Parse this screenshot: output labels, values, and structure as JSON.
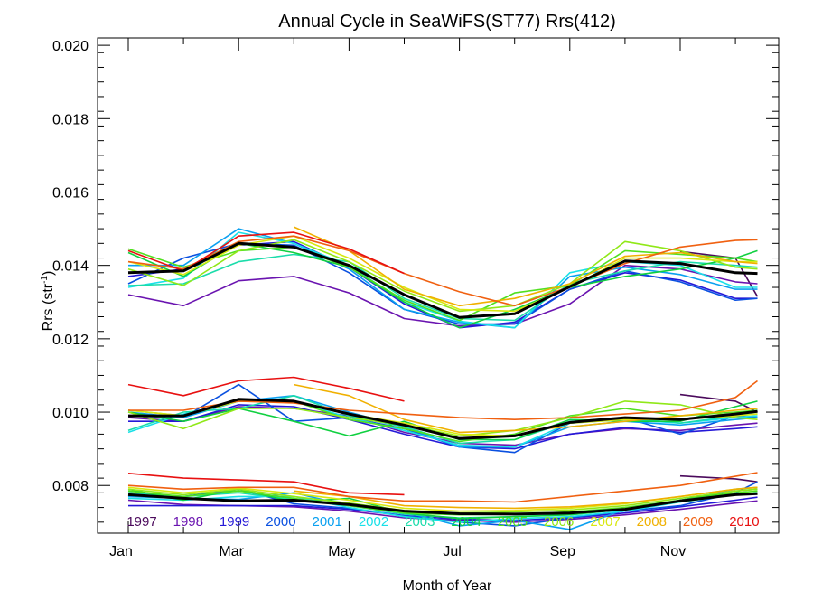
{
  "chart_data": {
    "type": "line",
    "title": "Annual Cycle in SeaWiFS(ST77) Rrs(412)",
    "xlabel": "Month of Year",
    "ylabel": "Rrs (str",
    "ylabel_sup": "-1",
    "ylabel_close": ")",
    "xlim": [
      0,
      11.4
    ],
    "ylim": [
      0.0067,
      0.0202
    ],
    "xticks": [
      {
        "x": 0,
        "label": "Jan"
      },
      {
        "x": 2,
        "label": "Mar"
      },
      {
        "x": 4,
        "label": "May"
      },
      {
        "x": 6,
        "label": "Jul"
      },
      {
        "x": 8,
        "label": "Sep"
      },
      {
        "x": 10,
        "label": "Nov"
      }
    ],
    "yticks": [
      {
        "y": 0.008,
        "label": "0.008"
      },
      {
        "y": 0.01,
        "label": "0.010"
      },
      {
        "y": 0.012,
        "label": "0.012"
      },
      {
        "y": 0.014,
        "label": "0.014"
      },
      {
        "y": 0.016,
        "label": "0.016"
      },
      {
        "y": 0.018,
        "label": "0.018"
      },
      {
        "y": 0.02,
        "label": "0.020"
      }
    ],
    "x": [
      0,
      1,
      2,
      3,
      4,
      5,
      6,
      7,
      8,
      9,
      10,
      11,
      11.4
    ],
    "series": [
      {
        "name": "1997",
        "color": "#4b0a5c",
        "groups": [
          [
            null,
            null,
            null,
            null,
            null,
            null,
            null,
            null,
            null,
            null,
            0.01438,
            0.0142,
            0.01315
          ],
          [
            null,
            null,
            null,
            null,
            null,
            null,
            null,
            null,
            null,
            null,
            0.01048,
            0.0103,
            0.01
          ],
          [
            null,
            null,
            null,
            null,
            null,
            null,
            null,
            null,
            null,
            null,
            0.00826,
            0.00818,
            0.0081
          ]
        ]
      },
      {
        "name": "1998",
        "color": "#6a14b0",
        "groups": [
          [
            0.0132,
            0.0129,
            0.01358,
            0.0137,
            0.01325,
            0.01255,
            0.01235,
            0.0124,
            0.01295,
            0.014,
            0.0139,
            0.01355,
            0.0135
          ],
          [
            0.00985,
            0.00975,
            0.01015,
            0.0101,
            0.0099,
            0.00945,
            0.00915,
            0.0091,
            0.0094,
            0.00955,
            0.0095,
            0.00965,
            0.0097
          ],
          [
            0.0076,
            0.00748,
            0.00745,
            0.00742,
            0.0073,
            0.00712,
            0.00705,
            0.007,
            0.00708,
            0.0072,
            0.00735,
            0.00752,
            0.00758
          ]
        ]
      },
      {
        "name": "1999",
        "color": "#2418d8",
        "groups": [
          [
            0.0137,
            0.0139,
            0.01455,
            0.01465,
            0.01395,
            0.01295,
            0.0123,
            0.01245,
            0.01335,
            0.0138,
            0.0136,
            0.0131,
            0.0131
          ],
          [
            0.00975,
            0.00975,
            0.0102,
            0.01015,
            0.0098,
            0.0094,
            0.00905,
            0.009,
            0.0094,
            0.00958,
            0.00945,
            0.00955,
            0.0096
          ],
          [
            0.00745,
            0.00745,
            0.00745,
            0.00745,
            0.00735,
            0.00718,
            0.00708,
            0.00705,
            0.00712,
            0.00725,
            0.00742,
            0.0076,
            0.00768
          ]
        ]
      },
      {
        "name": "2000",
        "color": "#0a50e0",
        "groups": [
          [
            0.0135,
            0.0142,
            0.0146,
            0.01455,
            0.0138,
            0.0128,
            0.0124,
            0.0124,
            0.01335,
            0.01385,
            0.01355,
            0.01305,
            0.0131
          ],
          [
            0.0099,
            0.00985,
            0.01075,
            0.00975,
            0.00985,
            0.00955,
            0.00905,
            0.0089,
            0.0097,
            0.00985,
            0.0094,
            0.0099,
            0.00985
          ],
          [
            0.0078,
            0.0077,
            0.0079,
            0.0075,
            0.00738,
            0.00718,
            0.007,
            0.0069,
            0.00712,
            0.0073,
            0.00745,
            0.0078,
            0.0081
          ]
        ]
      },
      {
        "name": "2001",
        "color": "#0aa0f0",
        "groups": [
          [
            0.014,
            0.014,
            0.015,
            0.0146,
            0.0139,
            0.0128,
            0.01245,
            0.0123,
            0.0137,
            0.01395,
            0.01375,
            0.01335,
            0.01335
          ],
          [
            0.01,
            0.00985,
            0.0103,
            0.01045,
            0.01,
            0.0096,
            0.00905,
            0.00905,
            0.0096,
            0.00975,
            0.00965,
            0.0098,
            0.00985
          ],
          [
            0.0077,
            0.00765,
            0.00762,
            0.0078,
            0.00745,
            0.00728,
            0.0069,
            0.00705,
            0.0068,
            0.00735,
            0.0076,
            0.0079,
            0.00795
          ]
        ]
      },
      {
        "name": "2002",
        "color": "#18e0e8",
        "groups": [
          [
            0.0134,
            0.01365,
            0.0149,
            0.0146,
            0.014,
            0.013,
            0.01248,
            0.0123,
            0.0138,
            0.0141,
            0.014,
            0.0134,
            0.0134
          ],
          [
            0.00945,
            0.00995,
            0.0103,
            0.0103,
            0.00985,
            0.0095,
            0.0091,
            0.00905,
            0.0097,
            0.0098,
            0.0097,
            0.00985,
            0.0099
          ],
          [
            0.00765,
            0.0076,
            0.0077,
            0.0077,
            0.0074,
            0.00715,
            0.007,
            0.0071,
            0.00715,
            0.0073,
            0.00755,
            0.00775,
            0.0078
          ]
        ]
      },
      {
        "name": "2003",
        "color": "#1adcaa",
        "groups": [
          [
            0.01345,
            0.0135,
            0.0141,
            0.0143,
            0.0141,
            0.0131,
            0.01255,
            0.0125,
            0.0135,
            0.01385,
            0.0141,
            0.014,
            0.01395
          ],
          [
            0.0095,
            0.01,
            0.0101,
            0.01045,
            0.0099,
            0.0096,
            0.00915,
            0.00925,
            0.00975,
            0.00985,
            0.0097,
            0.0099,
            0.00995
          ],
          [
            0.0078,
            0.0077,
            0.0078,
            0.00762,
            0.00745,
            0.00722,
            0.00712,
            0.00715,
            0.0072,
            0.00735,
            0.00755,
            0.00775,
            0.0078
          ]
        ]
      },
      {
        "name": "2004",
        "color": "#10d040",
        "groups": [
          [
            0.01435,
            0.0137,
            0.0146,
            0.01435,
            0.01395,
            0.013,
            0.0123,
            0.0128,
            0.0134,
            0.0137,
            0.0139,
            0.0142,
            0.0144
          ],
          [
            0.01,
            0.00975,
            0.0101,
            0.00975,
            0.00935,
            0.00975,
            0.00925,
            0.00925,
            0.0098,
            0.00975,
            0.00975,
            0.01015,
            0.0103
          ],
          [
            0.0079,
            0.0076,
            0.0079,
            0.00755,
            0.00765,
            0.00725,
            0.0071,
            0.00715,
            0.0072,
            0.00735,
            0.0076,
            0.00785,
            0.0079
          ]
        ]
      },
      {
        "name": "2005",
        "color": "#50e020",
        "groups": [
          [
            0.01445,
            0.01395,
            0.0144,
            0.0145,
            0.01395,
            0.01305,
            0.0125,
            0.01325,
            0.01345,
            0.0144,
            0.0143,
            0.0142,
            0.0141
          ],
          [
            0.01005,
            0.0099,
            0.0103,
            0.0103,
            0.0098,
            0.00955,
            0.0092,
            0.0094,
            0.0099,
            0.0101,
            0.0099,
            0.01,
            0.01005
          ],
          [
            0.00785,
            0.0077,
            0.00785,
            0.00765,
            0.00745,
            0.00725,
            0.0072,
            0.00722,
            0.00728,
            0.0074,
            0.0076,
            0.0078,
            0.00785
          ]
        ]
      },
      {
        "name": "2006",
        "color": "#90e818",
        "groups": [
          [
            0.0139,
            0.01345,
            0.0144,
            0.0147,
            0.0141,
            0.0133,
            0.01275,
            0.0129,
            0.0135,
            0.01465,
            0.0144,
            0.01395,
            0.0139
          ],
          [
            0.01,
            0.00955,
            0.0101,
            0.0101,
            0.00985,
            0.00965,
            0.00935,
            0.0095,
            0.00985,
            0.0103,
            0.0102,
            0.00985,
            0.0098
          ],
          [
            0.0079,
            0.00775,
            0.0079,
            0.0077,
            0.00752,
            0.00732,
            0.00725,
            0.00728,
            0.00733,
            0.00745,
            0.00765,
            0.00785,
            0.0079
          ]
        ]
      },
      {
        "name": "2007",
        "color": "#d8e810",
        "groups": [
          [
            0.0141,
            0.01375,
            0.01455,
            0.0148,
            0.0142,
            0.0134,
            0.0128,
            0.01275,
            0.0134,
            0.0142,
            0.0142,
            0.0141,
            0.0141
          ],
          [
            0.01005,
            0.0099,
            0.0103,
            0.0103,
            0.00995,
            0.0097,
            0.0094,
            0.00935,
            0.0097,
            0.0098,
            0.0098,
            0.0099,
            0.00995
          ],
          [
            0.00795,
            0.0078,
            0.00793,
            0.00778,
            0.0076,
            0.00738,
            0.0073,
            0.00732,
            0.00738,
            0.0075,
            0.0077,
            0.0079,
            0.00795
          ]
        ]
      },
      {
        "name": "2008",
        "color": "#f0b000",
        "groups": [
          [
            null,
            null,
            null,
            0.01505,
            0.0144,
            0.01335,
            0.0129,
            0.0131,
            0.0135,
            0.01425,
            0.01435,
            0.0141,
            0.01405
          ],
          [
            null,
            null,
            null,
            0.01075,
            0.01045,
            0.0098,
            0.00945,
            0.0095,
            0.0096,
            0.00975,
            0.0099,
            0.01005,
            0.0101
          ],
          [
            null,
            null,
            null,
            0.00785,
            0.0077,
            0.00745,
            0.0074,
            0.00738,
            0.00742,
            0.00752,
            0.0077,
            0.0079,
            0.00795
          ]
        ]
      },
      {
        "name": "2009",
        "color": "#f06010",
        "groups": [
          [
            0.0141,
            0.0139,
            0.01465,
            0.0148,
            0.0144,
            0.01378,
            0.01328,
            0.0129,
            0.01342,
            0.01405,
            0.0145,
            0.01468,
            0.0147
          ],
          [
            0.01005,
            0.01005,
            0.0103,
            0.01025,
            0.01005,
            0.00995,
            0.00985,
            0.0098,
            0.00985,
            0.00995,
            0.01005,
            0.0104,
            0.01085
          ],
          [
            0.008,
            0.0079,
            0.00795,
            0.00795,
            0.0077,
            0.00758,
            0.00758,
            0.00755,
            0.0077,
            0.00785,
            0.008,
            0.00825,
            0.00835
          ]
        ]
      },
      {
        "name": "2010",
        "color": "#e81010",
        "groups": [
          [
            0.0144,
            0.01385,
            0.0148,
            0.0149,
            0.01445,
            0.01378,
            null,
            null,
            null,
            null,
            null,
            null,
            null
          ],
          [
            0.01075,
            0.01045,
            0.01085,
            0.01095,
            0.01065,
            0.0103,
            null,
            null,
            null,
            null,
            null,
            null,
            null
          ],
          [
            0.00833,
            0.0082,
            0.00815,
            0.0081,
            0.0078,
            0.00775,
            null,
            null,
            null,
            null,
            null,
            null,
            null
          ]
        ]
      },
      {
        "name": "",
        "color": "#000000",
        "mean": true,
        "groups": [
          [
            0.0138,
            0.01385,
            0.0146,
            0.0145,
            0.014,
            0.0132,
            0.01258,
            0.01268,
            0.01342,
            0.01412,
            0.01405,
            0.0138,
            0.01378
          ],
          [
            0.0099,
            0.0099,
            0.01035,
            0.0103,
            0.00995,
            0.00965,
            0.00928,
            0.00935,
            0.00972,
            0.00985,
            0.0098,
            0.00995,
            0.01002
          ],
          [
            0.00775,
            0.00765,
            0.00758,
            0.0076,
            0.00748,
            0.0073,
            0.00723,
            0.00722,
            0.00725,
            0.00735,
            0.00758,
            0.00775,
            0.00778
          ]
        ]
      }
    ]
  }
}
